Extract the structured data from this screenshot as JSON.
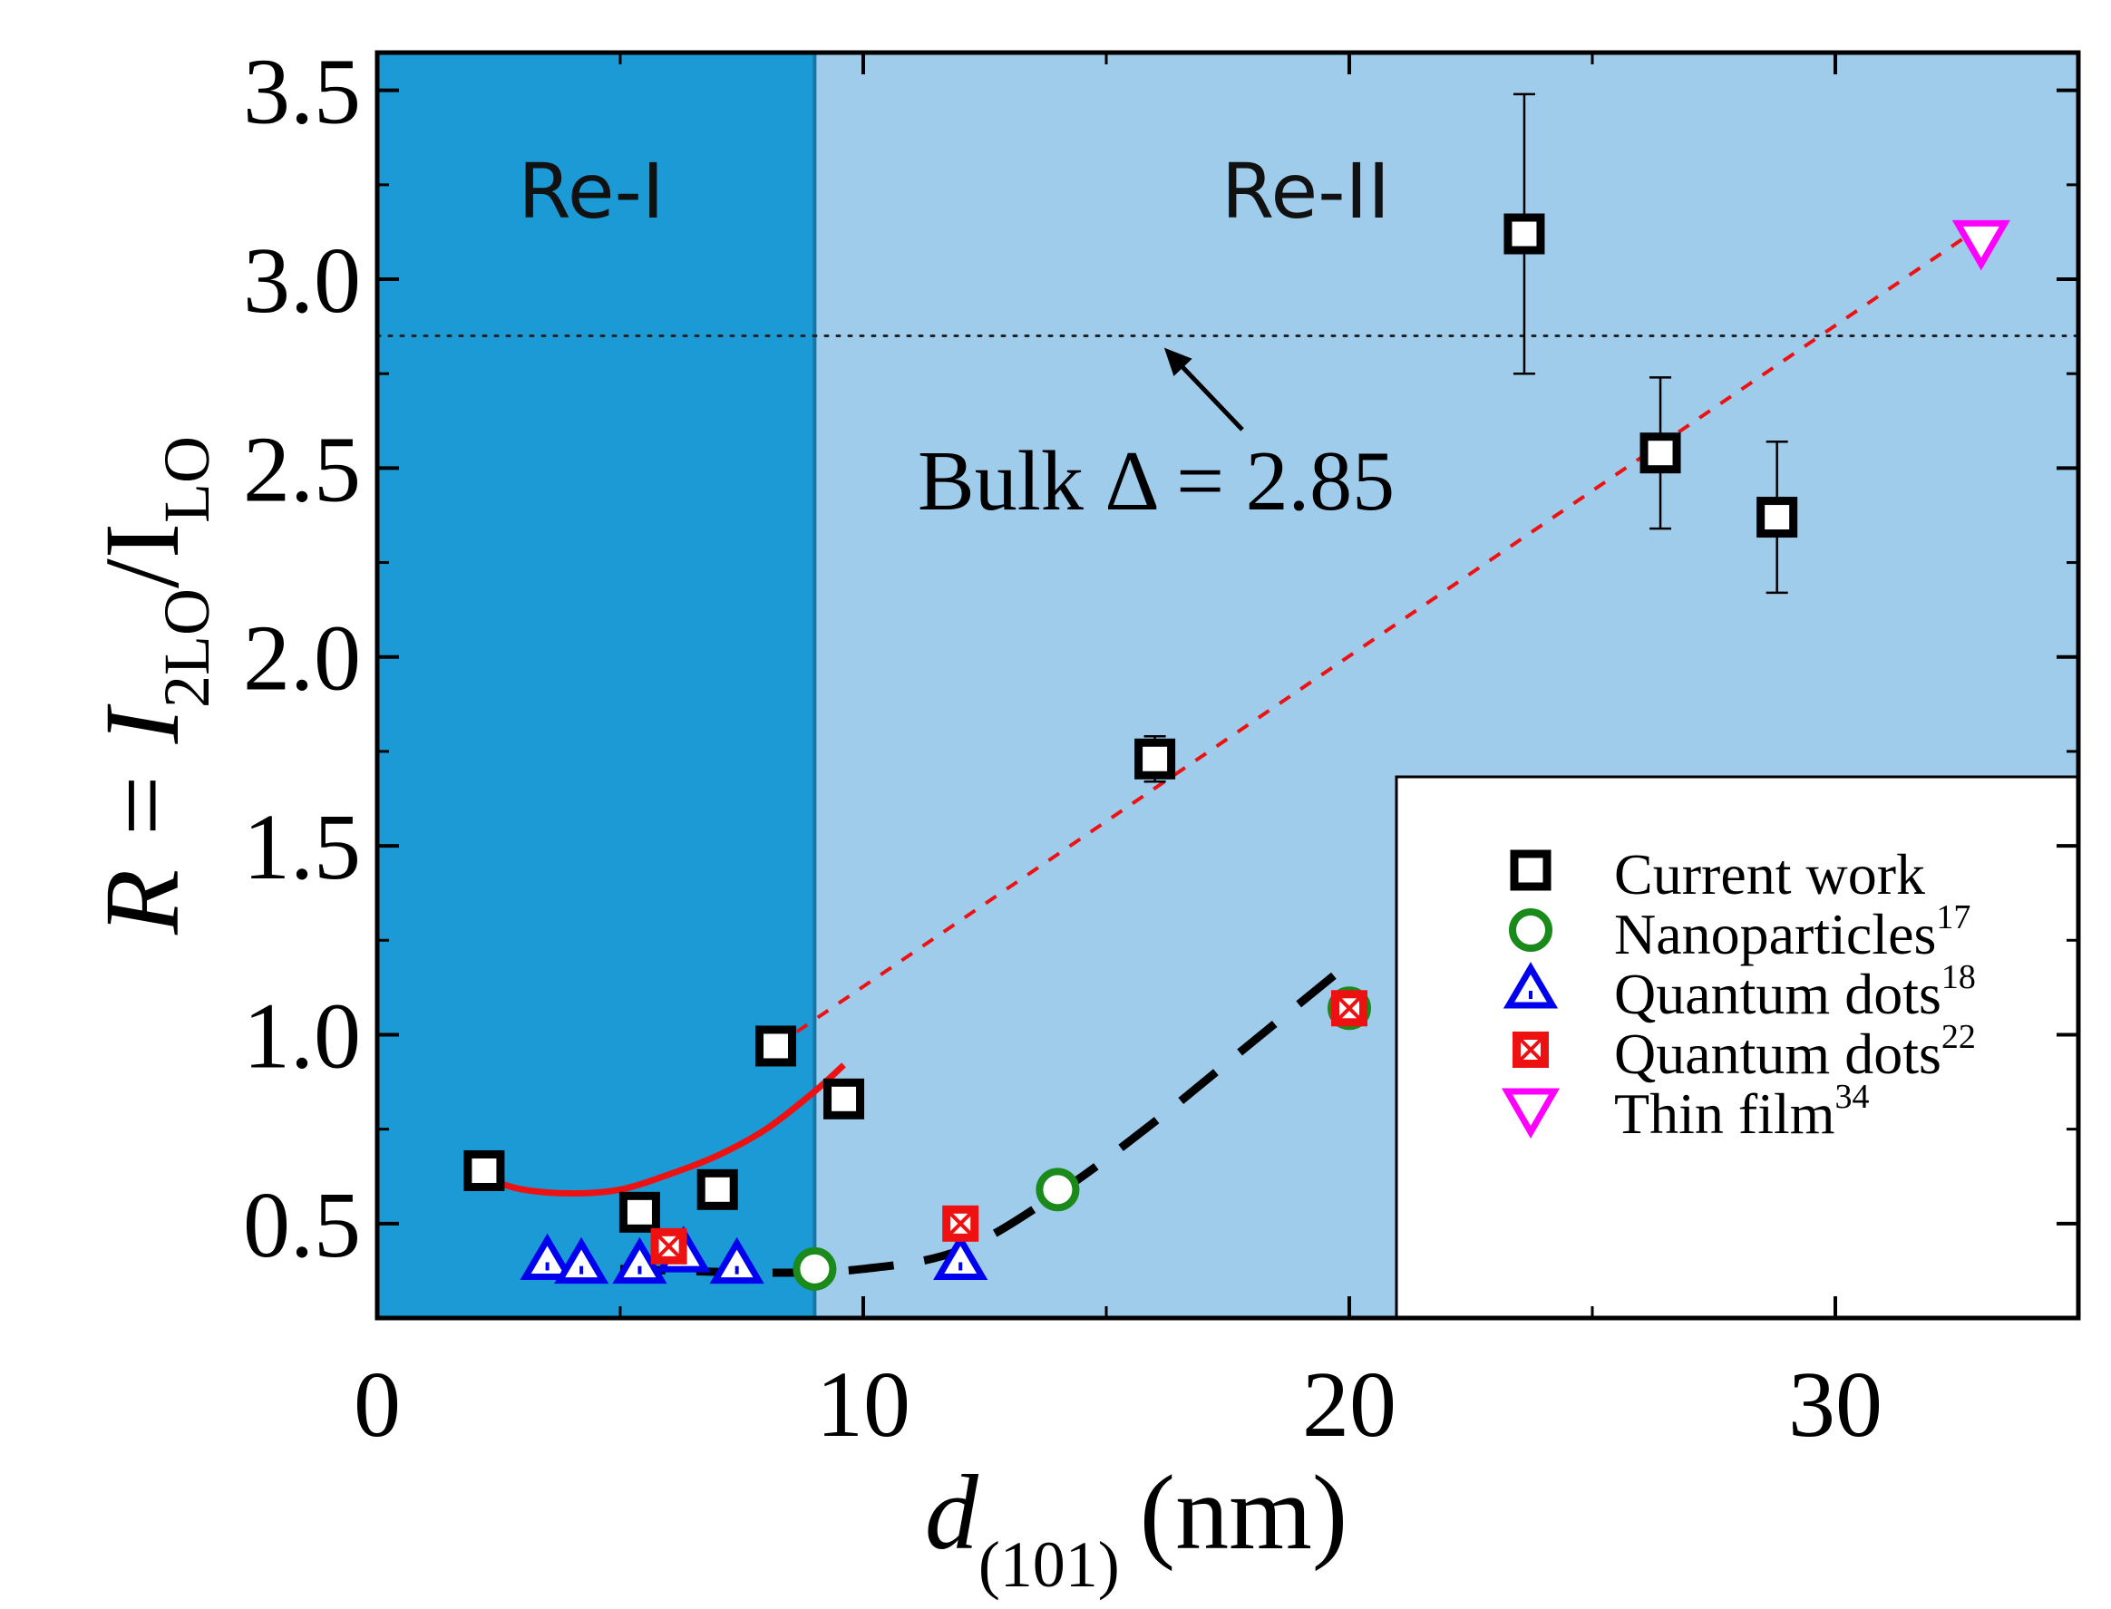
{
  "chart_data": {
    "type": "scatter",
    "xlabel": {
      "main": "d",
      "sub": "(101)",
      "unit": "(nm)"
    },
    "ylabel": {
      "main": "R = I",
      "sub1": "2LO",
      "mid": "/I",
      "sub2": "LO"
    },
    "xlim": [
      0,
      35
    ],
    "ylim": [
      0.25,
      3.6
    ],
    "xticks": [
      0,
      10,
      20,
      30
    ],
    "yticks": [
      0.5,
      1.0,
      1.5,
      2.0,
      2.5,
      3.0,
      3.5
    ],
    "ytick_labels": [
      "0.5",
      "1.0",
      "1.5",
      "2.0",
      "2.5",
      "3.0",
      "3.5"
    ],
    "regions": [
      {
        "label": "Re-I",
        "x_from": 0,
        "x_to": 9,
        "color": "#1b9ad6"
      },
      {
        "label": "Re-II",
        "x_from": 9,
        "x_to": 35,
        "color": "#a0cceb"
      }
    ],
    "reference_line": {
      "y": 2.85,
      "label": "Bulk Δ = 2.85",
      "style": "dotted"
    },
    "series": [
      {
        "name": "Current work",
        "marker": "square",
        "color": "#000000",
        "points": [
          {
            "x": 2.2,
            "y": 0.64,
            "err": 0.02
          },
          {
            "x": 5.4,
            "y": 0.53,
            "err": 0.03
          },
          {
            "x": 7.0,
            "y": 0.59,
            "err": 0.03
          },
          {
            "x": 8.2,
            "y": 0.97,
            "err": 0.0
          },
          {
            "x": 9.6,
            "y": 0.83,
            "err": 0.0
          },
          {
            "x": 16.0,
            "y": 1.73,
            "err": 0.06
          },
          {
            "x": 23.6,
            "y": 3.12,
            "err": 0.37
          },
          {
            "x": 26.4,
            "y": 2.54,
            "err": 0.2
          },
          {
            "x": 28.8,
            "y": 2.37,
            "err": 0.2
          }
        ]
      },
      {
        "name": "Nanoparticles",
        "ref": "17",
        "marker": "circle",
        "color": "#1a8a1a",
        "points": [
          {
            "x": 9.0,
            "y": 0.38
          },
          {
            "x": 14.0,
            "y": 0.59
          },
          {
            "x": 20.0,
            "y": 1.07
          }
        ]
      },
      {
        "name": "Quantum dots",
        "ref": "18",
        "marker": "triangle-up",
        "color": "#0000ee",
        "points": [
          {
            "x": 3.5,
            "y": 0.4
          },
          {
            "x": 4.2,
            "y": 0.39
          },
          {
            "x": 5.4,
            "y": 0.39
          },
          {
            "x": 6.3,
            "y": 0.42
          },
          {
            "x": 7.4,
            "y": 0.39
          },
          {
            "x": 12.0,
            "y": 0.4
          }
        ]
      },
      {
        "name": "Quantum dots",
        "ref": "22",
        "marker": "square-x",
        "color": "#ee1111",
        "points": [
          {
            "x": 6.0,
            "y": 0.44
          },
          {
            "x": 12.0,
            "y": 0.5
          },
          {
            "x": 20.0,
            "y": 1.07
          }
        ]
      },
      {
        "name": "Thin film",
        "ref": "34",
        "marker": "triangle-down",
        "color": "#ff00ff",
        "points": [
          {
            "x": 33.0,
            "y": 3.1
          }
        ]
      }
    ],
    "fits": [
      {
        "name": "Re-I fit",
        "style": "solid",
        "color": "#ee1111",
        "x": [
          2.2,
          3.0,
          4.0,
          5.0,
          6.0,
          7.0,
          8.0,
          9.0,
          9.6
        ],
        "y": [
          0.62,
          0.59,
          0.58,
          0.59,
          0.63,
          0.68,
          0.75,
          0.85,
          0.92
        ]
      },
      {
        "name": "Re-II fit",
        "style": "dashed",
        "color": "#ee1111",
        "x": [
          8.2,
          33.0
        ],
        "y": [
          0.97,
          3.14
        ]
      },
      {
        "name": "Literature fit",
        "style": "long-dashed",
        "color": "#000000",
        "x": [
          5.0,
          8.0,
          10.0,
          12.0,
          14.0,
          16.0,
          18.0,
          20.0
        ],
        "y": [
          0.38,
          0.37,
          0.38,
          0.43,
          0.58,
          0.77,
          0.98,
          1.19
        ]
      }
    ]
  }
}
